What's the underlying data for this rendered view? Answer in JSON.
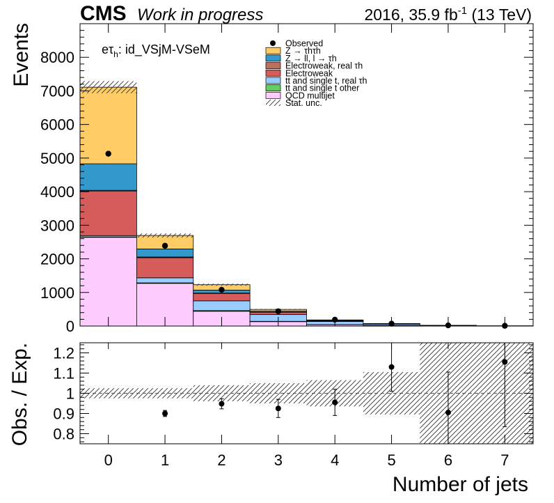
{
  "header": {
    "cms": "CMS",
    "wip": "Work in progress",
    "lumi_prefix": "2016, 35.9 fb",
    "lumi_exp": "-1",
    "lumi_suffix": " (13 TeV)"
  },
  "channel": {
    "prefix": "eτ",
    "sub": "h",
    "suffix": ": id_VSjM-VSeM"
  },
  "chart_data": [
    {
      "type": "bar",
      "stacked": true,
      "ylabel": "Events",
      "xlabel": "Number of jets",
      "ylim": [
        0,
        9000
      ],
      "yticks": [
        0,
        1000,
        2000,
        3000,
        4000,
        5000,
        6000,
        7000,
        8000
      ],
      "xlim": [
        -0.5,
        7.5
      ],
      "categories": [
        0,
        1,
        2,
        3,
        4,
        5,
        6,
        7
      ],
      "series": [
        {
          "name": "QCD multijet",
          "color": "#ffccff",
          "values": [
            2640,
            1270,
            440,
            130,
            40,
            15,
            5,
            2
          ]
        },
        {
          "name": "tt and single t other",
          "color": "#66cc66",
          "values": [
            10,
            15,
            20,
            10,
            5,
            2,
            1,
            0
          ]
        },
        {
          "name": "tt and single t, real τh",
          "color": "#99ccff",
          "values": [
            40,
            150,
            290,
            200,
            90,
            40,
            12,
            4
          ]
        },
        {
          "name": "Electroweak",
          "color": "#d65b5b",
          "values": [
            1330,
            600,
            220,
            70,
            20,
            8,
            2,
            1
          ]
        },
        {
          "name": "Electroweak, real τh",
          "color": "#bb6f5d",
          "values": [
            20,
            20,
            10,
            5,
            2,
            1,
            0,
            0
          ]
        },
        {
          "name": "Z → ll, l → τh",
          "color": "#3399cc",
          "values": [
            790,
            240,
            90,
            30,
            10,
            3,
            1,
            0
          ]
        },
        {
          "name": "Z → τhτh",
          "color": "#ffcc66",
          "values": [
            2280,
            400,
            160,
            50,
            15,
            5,
            1,
            0
          ]
        }
      ],
      "stat_unc": [
        180,
        60,
        30,
        15,
        8,
        4,
        2,
        1
      ],
      "observed": [
        5130,
        2390,
        1080,
        440,
        190,
        70,
        20,
        8
      ],
      "legend": {
        "placement": "top-center",
        "entries": [
          {
            "label": "Observed",
            "style": "marker"
          },
          {
            "label": "Z → τhτh",
            "style": "fill",
            "color": "#ffcc66"
          },
          {
            "label": "Z → ll, l → τh",
            "style": "fill",
            "color": "#3399cc"
          },
          {
            "label": "Electroweak, real τh",
            "style": "fill",
            "color": "#bb6f5d"
          },
          {
            "label": "Electroweak",
            "style": "fill",
            "color": "#d65b5b"
          },
          {
            "label": "tt and single t, real τh",
            "style": "fill",
            "color": "#99ccff"
          },
          {
            "label": "tt and single t other",
            "style": "fill",
            "color": "#66cc66"
          },
          {
            "label": "QCD multijet",
            "style": "fill",
            "color": "#ffccff"
          },
          {
            "label": "Stat. unc.",
            "style": "hatch"
          }
        ]
      }
    },
    {
      "type": "scatter",
      "ylabel": "Obs. / Exp.",
      "xlabel": "Number of jets",
      "ylim": [
        0.75,
        1.25
      ],
      "yticks": [
        0.8,
        0.9,
        1,
        1.1,
        1.2
      ],
      "ytick_labels": [
        "0.8",
        "0.9",
        "1",
        "1.1",
        "1.2"
      ],
      "xlim": [
        -0.5,
        7.5
      ],
      "categories": [
        0,
        1,
        2,
        3,
        4,
        5,
        6,
        7
      ],
      "ratio": [
        0.9,
        0.948,
        0.925,
        0.955,
        1.13,
        0.905,
        1.155
      ],
      "ratio_x": [
        1,
        2,
        3,
        4,
        5,
        6,
        7
      ],
      "ratio_err": [
        0.015,
        0.025,
        0.045,
        0.065,
        0.12,
        0.2,
        0.32
      ],
      "unc_band": [
        0.025,
        0.025,
        0.04,
        0.05,
        0.065,
        0.105,
        0.45,
        0.6
      ],
      "reference_line": 1
    }
  ]
}
